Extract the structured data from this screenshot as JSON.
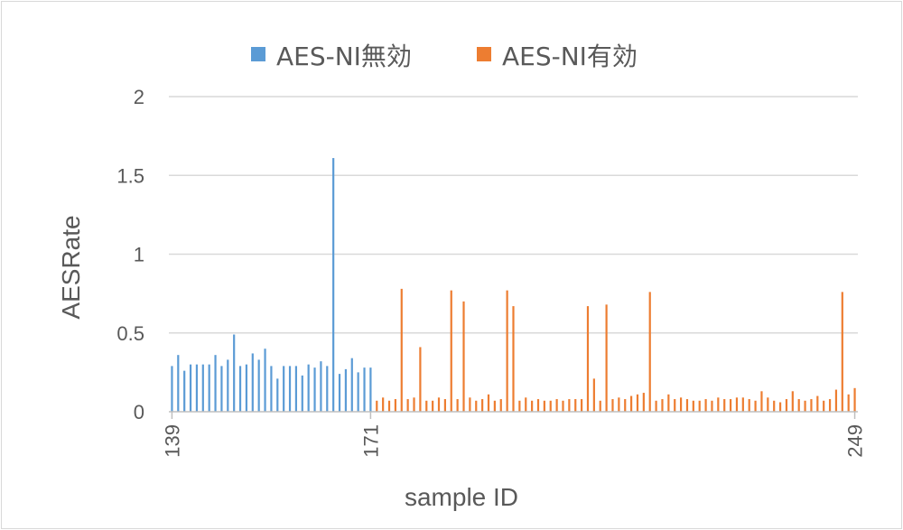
{
  "chart_data": {
    "type": "bar",
    "title": "",
    "xlabel": "sample ID",
    "ylabel": "AESRate",
    "ylim": [
      0,
      2
    ],
    "yticks": [
      "0",
      "0.5",
      "1",
      "1.5",
      "2"
    ],
    "ytick_values": [
      0,
      0.5,
      1,
      1.5,
      2
    ],
    "grid": true,
    "legend_position": "top",
    "x_start": 139,
    "x_end": 249,
    "xtick_values": [
      139,
      171,
      249
    ],
    "xtick_labels": [
      "139",
      "171",
      "249"
    ],
    "series": [
      {
        "name": "AES-NI無効",
        "color": "#5b9bd5",
        "x_start": 139,
        "values": [
          0.29,
          0.36,
          0.26,
          0.3,
          0.3,
          0.3,
          0.3,
          0.36,
          0.29,
          0.33,
          0.49,
          0.29,
          0.3,
          0.37,
          0.33,
          0.4,
          0.29,
          0.21,
          0.29,
          0.29,
          0.29,
          0.23,
          0.3,
          0.28,
          0.32,
          0.29,
          1.61,
          0.24,
          0.27,
          0.34,
          0.25,
          0.28,
          0.28
        ]
      },
      {
        "name": "AES-NI有効",
        "color": "#ed7d31",
        "x_start": 172,
        "values": [
          0.07,
          0.09,
          0.07,
          0.08,
          0.78,
          0.08,
          0.09,
          0.41,
          0.07,
          0.07,
          0.09,
          0.08,
          0.77,
          0.08,
          0.7,
          0.09,
          0.07,
          0.08,
          0.11,
          0.07,
          0.08,
          0.77,
          0.67,
          0.07,
          0.09,
          0.07,
          0.08,
          0.07,
          0.07,
          0.08,
          0.07,
          0.08,
          0.08,
          0.08,
          0.67,
          0.21,
          0.07,
          0.68,
          0.08,
          0.09,
          0.08,
          0.1,
          0.11,
          0.12,
          0.76,
          0.07,
          0.08,
          0.11,
          0.08,
          0.09,
          0.08,
          0.07,
          0.07,
          0.08,
          0.07,
          0.09,
          0.08,
          0.08,
          0.09,
          0.09,
          0.08,
          0.07,
          0.13,
          0.09,
          0.07,
          0.06,
          0.08,
          0.13,
          0.08,
          0.07,
          0.08,
          0.1,
          0.07,
          0.08,
          0.14,
          0.76,
          0.11,
          0.15
        ]
      }
    ]
  }
}
